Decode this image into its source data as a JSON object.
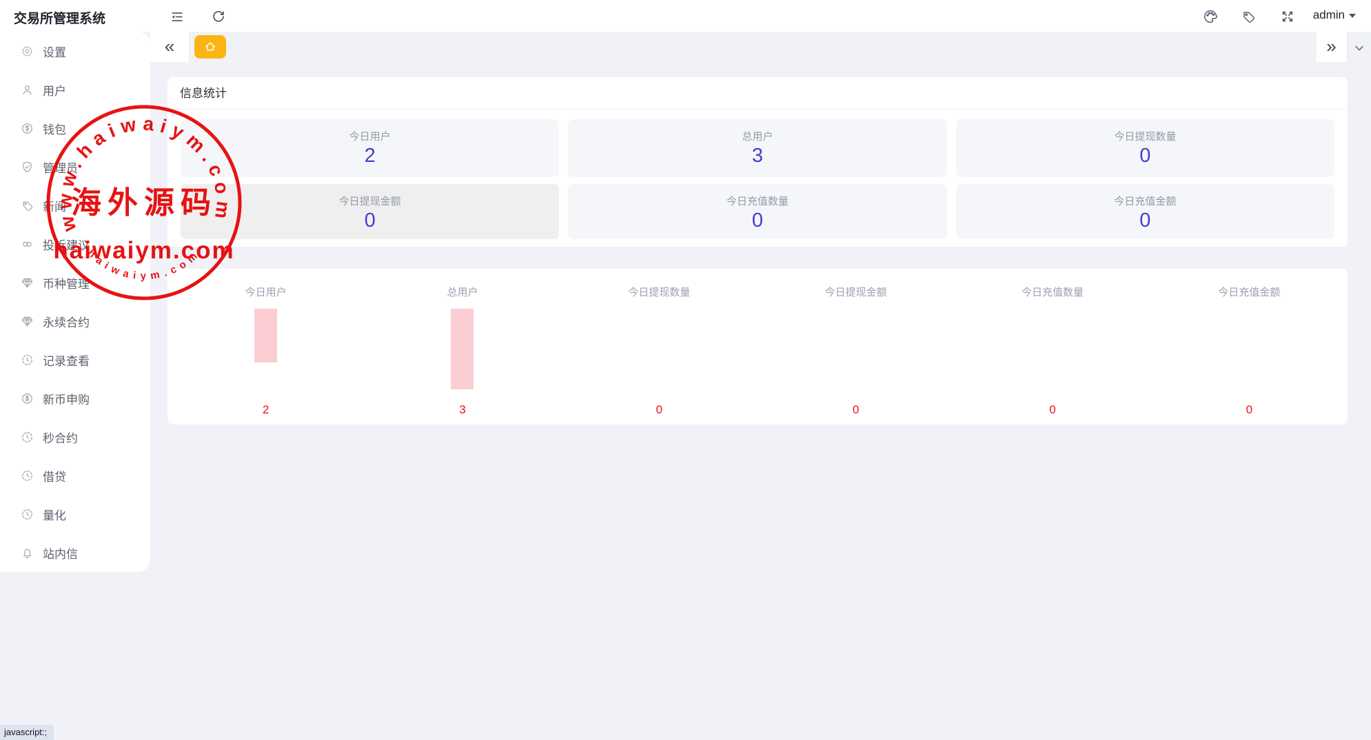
{
  "app": {
    "title": "交易所管理系统"
  },
  "topbar": {
    "left_icons": [
      {
        "name": "menu-fold-icon"
      },
      {
        "name": "refresh-icon"
      }
    ],
    "right_icons": [
      {
        "name": "palette-icon"
      },
      {
        "name": "tag-icon"
      },
      {
        "name": "fullscreen-icon"
      }
    ],
    "admin_label": "admin",
    "admin_caret": "caret-down-icon"
  },
  "tabs": {
    "collapse_left_glyph": "«",
    "collapse_right_glyph": "»",
    "home_tab_icon": "home-icon",
    "chevron_icon": "chevron-down-icon"
  },
  "sidebar": {
    "items": [
      {
        "icon": "gear-icon",
        "label": "设置"
      },
      {
        "icon": "user-icon",
        "label": "用户"
      },
      {
        "icon": "dollar-circle-icon",
        "label": "钱包"
      },
      {
        "icon": "shield-check-icon",
        "label": "管理员"
      },
      {
        "icon": "tag-icon",
        "label": "新闻"
      },
      {
        "icon": "link-icon",
        "label": "投拆建议"
      },
      {
        "icon": "gem-icon",
        "label": "币种管理"
      },
      {
        "icon": "gem-icon",
        "label": "永续合约"
      },
      {
        "icon": "clock-icon",
        "label": "记录查看"
      },
      {
        "icon": "dollar-circle-icon",
        "label": "新币申购"
      },
      {
        "icon": "clock-icon",
        "label": "秒合约"
      },
      {
        "icon": "clock-icon",
        "label": "借贷"
      },
      {
        "icon": "clock-icon",
        "label": "量化"
      },
      {
        "icon": "bell-icon",
        "label": "站内信"
      }
    ]
  },
  "stats_panel": {
    "title": "信息统计",
    "cards": [
      {
        "label": "今日用户",
        "value": "2",
        "variant": "normal"
      },
      {
        "label": "总用户",
        "value": "3",
        "variant": "normal"
      },
      {
        "label": "今日提现数量",
        "value": "0",
        "variant": "normal"
      },
      {
        "label": "今日提现金额",
        "value": "0",
        "variant": "gray"
      },
      {
        "label": "今日充值数量",
        "value": "0",
        "variant": "normal"
      },
      {
        "label": "今日充值金额",
        "value": "0",
        "variant": "normal"
      }
    ]
  },
  "chart_data": {
    "type": "bar",
    "categories": [
      "今日用户",
      "总用户",
      "今日提现数量",
      "今日提现金额",
      "今日充值数量",
      "今日充值金额"
    ],
    "values": [
      2,
      3,
      0,
      0,
      0,
      0
    ],
    "title": "",
    "xlabel": "",
    "ylabel": "",
    "ylim": [
      0,
      3
    ],
    "grid": false,
    "legend": "none",
    "bar_color": "#fbcdd2",
    "value_label_color": "#f20d0d",
    "layout_note": "bars hang downward from a common top line; red value labels under each column"
  },
  "watermark": {
    "arc_top_text": "www.haiwaiym.com",
    "center_text": "海外源码",
    "line_text": "haiwaiym.com",
    "arc_bottom_text": "haiwaiym.com",
    "color": "#e60202"
  },
  "statusbar": {
    "text": "javascript:;"
  },
  "colors": {
    "accent_yellow": "#fbb513",
    "stat_value_blue": "#4a3ad3",
    "chart_value_red": "#f20d0d",
    "bar_pink": "#fbcdd2",
    "watermark_red": "#e60202",
    "page_bg": "#f0f2f7"
  }
}
